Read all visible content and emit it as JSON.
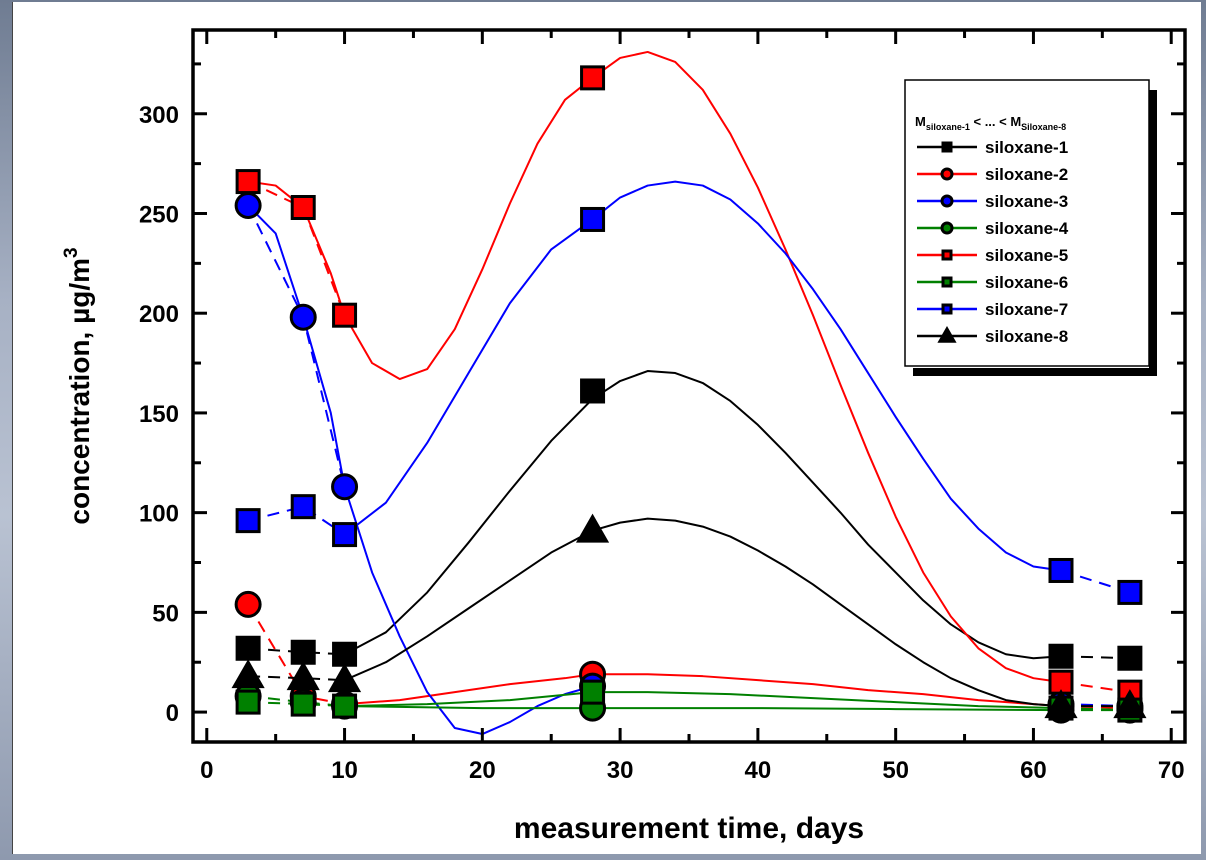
{
  "chart_data": {
    "type": "scatter",
    "xlabel": "measurement time, days",
    "ylabel_main": "concentration, µg/m",
    "ylabel_sup": "3",
    "xlim": [
      -1,
      71
    ],
    "ylim": [
      -15,
      342
    ],
    "xticks": [
      0,
      10,
      20,
      30,
      40,
      50,
      60,
      70
    ],
    "yticks": [
      0,
      50,
      100,
      150,
      200,
      250,
      300
    ],
    "legend": {
      "title_m1": "M",
      "title_sub1": "siloxane-1",
      "title_mid": " < ... < M",
      "title_sub2": "Siloxane-8",
      "placement": "top-right"
    },
    "series": [
      {
        "name": "siloxane-1",
        "color": "#000000",
        "marker": "square",
        "x": [
          3,
          7,
          10,
          28,
          62,
          67
        ],
        "y": [
          32,
          30,
          29,
          161,
          28,
          27
        ],
        "curve_x": [
          10,
          13,
          16,
          19,
          22,
          25,
          28,
          30,
          32,
          34,
          36,
          38,
          40,
          42,
          44,
          46,
          48,
          50,
          52,
          54,
          56,
          58,
          60,
          62
        ],
        "curve_y": [
          29,
          40,
          60,
          85,
          111,
          136,
          157,
          166,
          171,
          170,
          165,
          156,
          144,
          130,
          115,
          100,
          84,
          70,
          56,
          44,
          35,
          29,
          27,
          28
        ]
      },
      {
        "name": "siloxane-2",
        "color": "#ff0000",
        "marker": "circle",
        "x": [
          3,
          7,
          10,
          28,
          62,
          67
        ],
        "y": [
          54,
          8,
          4,
          19,
          3,
          2
        ],
        "curve_x": [
          10,
          14,
          18,
          22,
          26,
          28,
          32,
          36,
          40,
          44,
          48,
          52,
          56,
          60,
          62
        ],
        "curve_y": [
          4,
          6,
          10,
          14,
          17,
          19,
          19,
          18,
          16,
          14,
          11,
          9,
          6,
          4,
          3
        ]
      },
      {
        "name": "siloxane-3",
        "color": "#0000ff",
        "marker": "circle",
        "x": [
          3,
          7,
          10,
          28,
          62,
          67
        ],
        "y": [
          254,
          198,
          113,
          13,
          4,
          3
        ],
        "curve_x": [
          3,
          5,
          7,
          9,
          10,
          12,
          14,
          16,
          18,
          20,
          22,
          24,
          26,
          28
        ],
        "curve_y": [
          254,
          240,
          198,
          150,
          113,
          70,
          38,
          10,
          -8,
          -11,
          -5,
          3,
          9,
          13
        ]
      },
      {
        "name": "siloxane-4",
        "color": "#008000",
        "marker": "circle",
        "x": [
          3,
          7,
          10,
          28,
          62,
          67
        ],
        "y": [
          8,
          5,
          3,
          2,
          1,
          1
        ],
        "curve_x": [
          10,
          20,
          28,
          40,
          50,
          62
        ],
        "curve_y": [
          3,
          2,
          2,
          2,
          1.5,
          1
        ]
      },
      {
        "name": "siloxane-5",
        "color": "#ff0000",
        "marker": "square",
        "x": [
          3,
          7,
          10,
          28,
          62,
          67
        ],
        "y": [
          266,
          253,
          199,
          318,
          15,
          10
        ],
        "curve_x": [
          3,
          5,
          7,
          9,
          10,
          12,
          14,
          16,
          18,
          20,
          22,
          24,
          26,
          28,
          30,
          32,
          34,
          36,
          38,
          40,
          42,
          44,
          46,
          48,
          50,
          52,
          54,
          56,
          58,
          60,
          62
        ],
        "curve_y": [
          266,
          264,
          253,
          220,
          199,
          175,
          167,
          172,
          192,
          222,
          255,
          285,
          307,
          318,
          328,
          331,
          326,
          312,
          290,
          263,
          232,
          199,
          164,
          130,
          98,
          70,
          48,
          32,
          22,
          17,
          15
        ]
      },
      {
        "name": "siloxane-6",
        "color": "#008000",
        "marker": "square",
        "x": [
          3,
          7,
          10,
          28,
          62,
          67
        ],
        "y": [
          5,
          4,
          3,
          10,
          2,
          1
        ],
        "curve_x": [
          10,
          16,
          22,
          28,
          32,
          38,
          44,
          50,
          56,
          62
        ],
        "curve_y": [
          3,
          4,
          6,
          10,
          10,
          9,
          7,
          5,
          3,
          2
        ]
      },
      {
        "name": "siloxane-7",
        "color": "#0000ff",
        "marker": "square",
        "x": [
          3,
          7,
          10,
          28,
          62,
          67
        ],
        "y": [
          96,
          103,
          89,
          247,
          71,
          60
        ],
        "curve_x": [
          10,
          13,
          16,
          19,
          22,
          25,
          28,
          30,
          32,
          34,
          36,
          38,
          40,
          42,
          44,
          46,
          48,
          50,
          52,
          54,
          56,
          58,
          60,
          62
        ],
        "curve_y": [
          89,
          105,
          135,
          170,
          205,
          232,
          247,
          258,
          264,
          266,
          264,
          257,
          245,
          230,
          212,
          192,
          170,
          148,
          127,
          107,
          92,
          80,
          73,
          71
        ]
      },
      {
        "name": "siloxane-8",
        "color": "#000000",
        "marker": "triangle",
        "x": [
          3,
          7,
          10,
          28,
          62,
          67
        ],
        "y": [
          18,
          17,
          16,
          91,
          3,
          3
        ],
        "curve_x": [
          10,
          13,
          16,
          19,
          22,
          25,
          28,
          30,
          32,
          34,
          36,
          38,
          40,
          42,
          44,
          46,
          48,
          50,
          52,
          54,
          56,
          58,
          60,
          62
        ],
        "curve_y": [
          16,
          25,
          38,
          52,
          66,
          80,
          91,
          95,
          97,
          96,
          93,
          88,
          81,
          73,
          64,
          54,
          44,
          34,
          25,
          17,
          11,
          6,
          4,
          3
        ]
      }
    ]
  }
}
